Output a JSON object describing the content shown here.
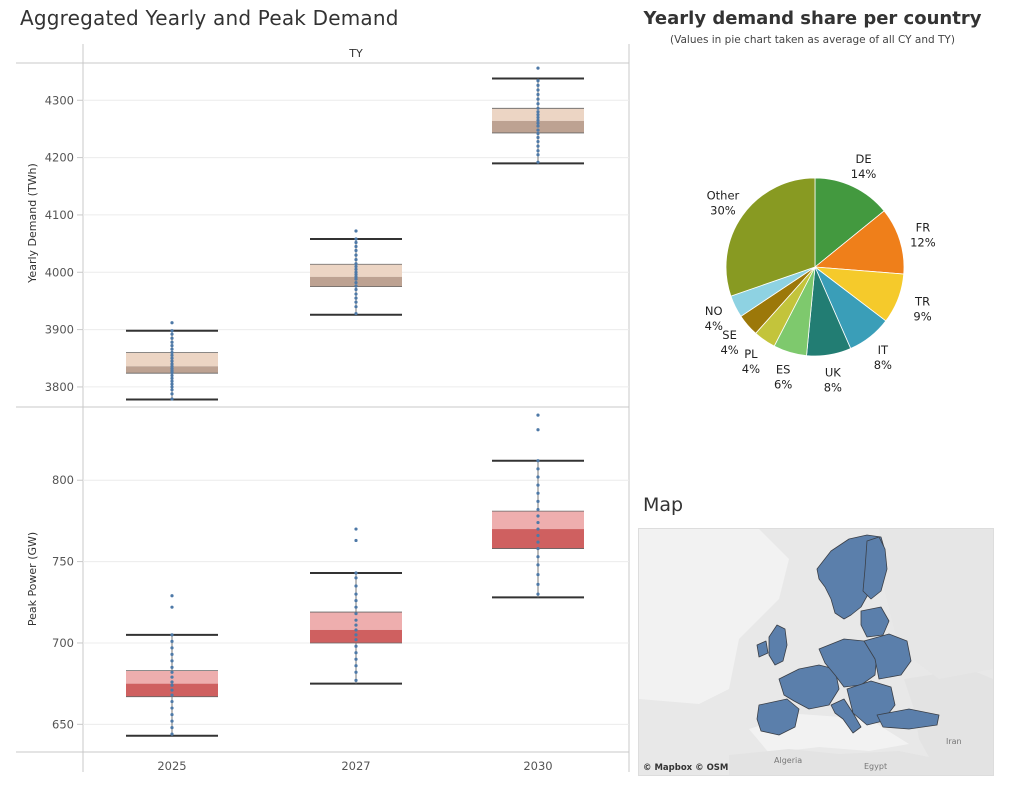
{
  "main_title": "Aggregated Yearly and Peak Demand",
  "pie_title": "Yearly demand share per country",
  "pie_subtitle": "(Values in pie chart taken as average of all CY and TY)",
  "map_title": "Map",
  "map_attribution": "© Mapbox  © OSM",
  "map_labels": [
    "Algeria",
    "Egypt",
    "Iran"
  ],
  "colors": {
    "yearly_box_upper": "#ecd5c4",
    "yearly_box_lower": "#bda292",
    "peak_box_upper": "#eeaeae",
    "peak_box_lower": "#cf6060",
    "points": "#4e79a7",
    "map_land": "#5b7fab"
  },
  "chart_data": [
    {
      "type": "box",
      "header": "TY",
      "ylabel": "Yearly Demand (TWh)",
      "ylim": [
        3765,
        4365
      ],
      "yticks": [
        3800,
        3900,
        4000,
        4100,
        4200,
        4300
      ],
      "categories": [
        "2025",
        "2027",
        "2030"
      ],
      "boxes": [
        {
          "category": "2025",
          "whisker_low": 3778,
          "q1": 3824,
          "median": 3836,
          "q3": 3860,
          "whisker_high": 3898,
          "points": [
            3779,
            3788,
            3795,
            3800,
            3805,
            3810,
            3815,
            3820,
            3825,
            3828,
            3832,
            3836,
            3840,
            3845,
            3850,
            3855,
            3860,
            3866,
            3872,
            3878,
            3885,
            3892,
            3898,
            3912
          ]
        },
        {
          "category": "2027",
          "whisker_low": 3926,
          "q1": 3975,
          "median": 3992,
          "q3": 4014,
          "whisker_high": 4058,
          "points": [
            3928,
            3940,
            3948,
            3955,
            3962,
            3970,
            3976,
            3982,
            3988,
            3992,
            3996,
            4000,
            4005,
            4010,
            4015,
            4022,
            4030,
            4038,
            4045,
            4052,
            4058,
            4072
          ]
        },
        {
          "category": "2030",
          "whisker_low": 4190,
          "q1": 4243,
          "median": 4264,
          "q3": 4286,
          "whisker_high": 4338,
          "points": [
            4192,
            4205,
            4212,
            4220,
            4228,
            4235,
            4242,
            4248,
            4255,
            4260,
            4265,
            4270,
            4275,
            4280,
            4286,
            4294,
            4302,
            4310,
            4318,
            4326,
            4334,
            4356
          ]
        }
      ]
    },
    {
      "type": "box",
      "ylabel": "Peak Power (GW)",
      "ylim": [
        633,
        845
      ],
      "yticks": [
        650,
        700,
        750,
        800
      ],
      "categories": [
        "2025",
        "2027",
        "2030"
      ],
      "boxes": [
        {
          "category": "2025",
          "whisker_low": 643,
          "q1": 667,
          "median": 675,
          "q3": 683,
          "whisker_high": 705,
          "points": [
            644,
            648,
            652,
            656,
            660,
            664,
            668,
            671,
            674,
            676,
            679,
            682,
            685,
            689,
            693,
            697,
            701,
            705,
            722,
            729
          ]
        },
        {
          "category": "2027",
          "whisker_low": 675,
          "q1": 700,
          "median": 708,
          "q3": 719,
          "whisker_high": 743,
          "points": [
            677,
            682,
            686,
            690,
            694,
            698,
            702,
            705,
            708,
            711,
            714,
            718,
            722,
            726,
            730,
            735,
            740,
            743,
            763,
            770
          ]
        },
        {
          "category": "2030",
          "whisker_low": 728,
          "q1": 758,
          "median": 770,
          "q3": 781,
          "whisker_high": 812,
          "points": [
            730,
            736,
            742,
            748,
            753,
            758,
            762,
            766,
            770,
            774,
            778,
            782,
            787,
            792,
            797,
            802,
            807,
            812,
            831,
            840
          ]
        }
      ]
    },
    {
      "type": "pie",
      "slices": [
        {
          "label": "DE",
          "value": 14,
          "pct": "14%",
          "color": "#43993f"
        },
        {
          "label": "FR",
          "value": 12,
          "pct": "12%",
          "color": "#ef7f1a"
        },
        {
          "label": "TR",
          "value": 9,
          "pct": "9%",
          "color": "#f5ca2b"
        },
        {
          "label": "IT",
          "value": 8,
          "pct": "8%",
          "color": "#3a9eb8"
        },
        {
          "label": "UK",
          "value": 8,
          "pct": "8%",
          "color": "#227d73"
        },
        {
          "label": "ES",
          "value": 6,
          "pct": "6%",
          "color": "#7ec96d"
        },
        {
          "label": "PL",
          "value": 4,
          "pct": "4%",
          "color": "#c3c43b"
        },
        {
          "label": "SE",
          "value": 4,
          "pct": "4%",
          "color": "#9c7809"
        },
        {
          "label": "NO",
          "value": 4,
          "pct": "4%",
          "color": "#8ed2e2"
        },
        {
          "label": "Other",
          "value": 30,
          "pct": "30%",
          "color": "#889a22"
        }
      ]
    }
  ]
}
